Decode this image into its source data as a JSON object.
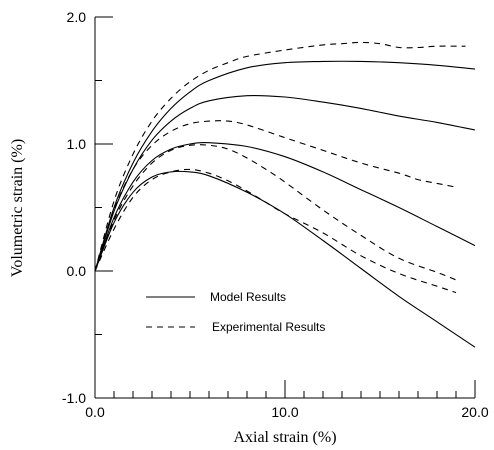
{
  "chart_data": {
    "type": "line",
    "xlabel": "Axial strain  (%)",
    "ylabel": "Volumetric strain  (%)",
    "xlim": [
      0,
      20
    ],
    "ylim": [
      -1,
      2
    ],
    "x_ticks": [
      "0.0",
      "10.0",
      "20.0"
    ],
    "y_ticks": [
      "-1.0",
      "0.0",
      "1.0",
      "2.0"
    ],
    "grid": false,
    "legend": {
      "placement": "lower-left",
      "entries": [
        "Model Results",
        "Experimental Results"
      ]
    },
    "series": [
      {
        "group": "model",
        "style": "solid",
        "x": [
          0,
          1,
          2,
          3,
          4,
          5,
          6,
          8,
          10,
          12,
          14,
          16,
          18,
          20
        ],
        "y": [
          0,
          0.5,
          0.85,
          1.1,
          1.28,
          1.41,
          1.5,
          1.6,
          1.64,
          1.65,
          1.65,
          1.64,
          1.62,
          1.59
        ]
      },
      {
        "group": "model",
        "style": "solid",
        "x": [
          0,
          1,
          2,
          3,
          4,
          5,
          6,
          8,
          10,
          12,
          14,
          16,
          18,
          20
        ],
        "y": [
          0,
          0.47,
          0.8,
          1.03,
          1.18,
          1.28,
          1.34,
          1.38,
          1.37,
          1.33,
          1.28,
          1.22,
          1.17,
          1.11
        ]
      },
      {
        "group": "model",
        "style": "solid",
        "x": [
          0,
          1,
          2,
          3,
          4,
          5,
          6,
          8,
          10,
          12,
          14,
          16,
          18,
          20
        ],
        "y": [
          0,
          0.42,
          0.7,
          0.87,
          0.96,
          1.0,
          1.01,
          0.98,
          0.9,
          0.78,
          0.64,
          0.5,
          0.35,
          0.2
        ]
      },
      {
        "group": "model",
        "style": "solid",
        "x": [
          0,
          1,
          2,
          3,
          4,
          5,
          6,
          8,
          10,
          12,
          14,
          16,
          18,
          20
        ],
        "y": [
          0,
          0.38,
          0.62,
          0.74,
          0.78,
          0.78,
          0.75,
          0.62,
          0.45,
          0.24,
          0.02,
          -0.2,
          -0.4,
          -0.6
        ]
      },
      {
        "group": "experimental",
        "style": "dashed",
        "x": [
          0,
          1,
          2,
          3,
          4,
          5,
          6,
          7,
          8,
          10,
          12,
          13,
          14,
          15,
          16,
          17,
          18,
          19.5
        ],
        "y": [
          0,
          0.55,
          0.92,
          1.18,
          1.36,
          1.49,
          1.58,
          1.64,
          1.69,
          1.74,
          1.78,
          1.79,
          1.8,
          1.79,
          1.76,
          1.76,
          1.77,
          1.77
        ]
      },
      {
        "group": "experimental",
        "style": "dashed",
        "x": [
          0,
          1,
          2,
          3,
          4,
          5,
          6,
          7,
          8,
          10,
          12,
          14,
          16,
          17,
          18,
          19
        ],
        "y": [
          0,
          0.48,
          0.8,
          0.99,
          1.1,
          1.16,
          1.18,
          1.18,
          1.15,
          1.05,
          0.95,
          0.85,
          0.77,
          0.72,
          0.69,
          0.66
        ]
      },
      {
        "group": "experimental",
        "style": "dashed",
        "x": [
          0,
          1,
          2,
          3,
          4,
          5,
          6,
          7,
          8,
          9,
          10,
          12,
          14,
          16,
          18,
          19
        ],
        "y": [
          0,
          0.4,
          0.67,
          0.85,
          0.95,
          0.99,
          0.99,
          0.96,
          0.89,
          0.8,
          0.7,
          0.48,
          0.28,
          0.1,
          -0.01,
          -0.07
        ]
      },
      {
        "group": "experimental",
        "style": "dashed",
        "x": [
          0,
          1,
          2,
          3,
          4,
          5,
          6,
          7,
          8,
          9,
          10,
          12,
          14,
          16,
          18,
          19
        ],
        "y": [
          0,
          0.33,
          0.58,
          0.72,
          0.78,
          0.8,
          0.77,
          0.71,
          0.63,
          0.54,
          0.45,
          0.3,
          0.12,
          -0.02,
          -0.12,
          -0.17
        ]
      }
    ]
  }
}
